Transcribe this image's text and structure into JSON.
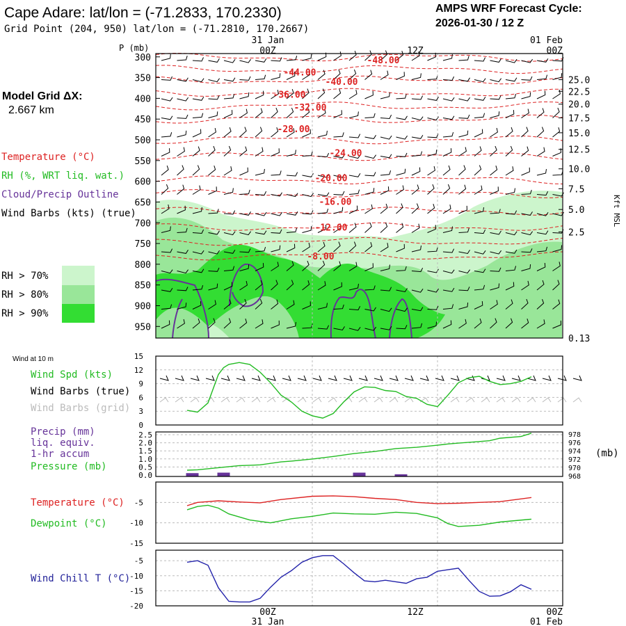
{
  "header": {
    "title": "Cape Adare:  lat/lon = (-71.2833, 170.2330)",
    "subtitle": "Grid Point (204, 950) lat/lon = (-71.2810, 170.2667)",
    "cycle_line1": "AMPS WRF Forecast Cycle:",
    "cycle_line2": "2026-01-30 / 12  Z"
  },
  "legend": {
    "model_grid_line1": "Model Grid ΔX:",
    "model_grid_line2": "2.667 km",
    "temperature": "Temperature (°C)",
    "rh": "RH (%, WRT liq. wat.)",
    "cloud": "Cloud/Precip Outline",
    "wind": "Wind Barbs (kts) (true)",
    "rh70": "RH > 70%",
    "rh80": "RH > 80%",
    "rh90": "RH > 90%",
    "colors": {
      "temperature": "#dd2222",
      "rh": "#22bb22",
      "cloud": "#663399",
      "rh70": "#ccf5cc",
      "rh80": "#99e699",
      "rh90": "#33dd33",
      "grid": "#bbbbbb"
    }
  },
  "time_axis": {
    "top_dates": [
      "31 Jan",
      "01 Feb"
    ],
    "top_times": [
      "00Z",
      "12Z",
      "00Z"
    ],
    "bottom_times": [
      "00Z",
      "12Z",
      "00Z"
    ],
    "bottom_dates": [
      "31 Jan",
      "01 Feb"
    ],
    "hours_range": [
      0,
      33
    ],
    "tick_hours": [
      12,
      24,
      36
    ]
  },
  "chart_data": [
    {
      "type": "line",
      "name": "vertical-cross-section",
      "ylabel": "P (mb)",
      "right_label": "Kft MSL",
      "y_ticks": [
        300,
        350,
        400,
        450,
        500,
        550,
        600,
        650,
        700,
        750,
        800,
        850,
        900,
        950
      ],
      "ylim": [
        292,
        978
      ],
      "right_ticks": [
        {
          "label": "25.0",
          "p": 355
        },
        {
          "label": "22.5",
          "p": 383
        },
        {
          "label": "20.0",
          "p": 414
        },
        {
          "label": "17.5",
          "p": 447
        },
        {
          "label": "15.0",
          "p": 483
        },
        {
          "label": "12.5",
          "p": 523
        },
        {
          "label": "10.0",
          "p": 570
        },
        {
          "label": "7.5",
          "p": 618
        },
        {
          "label": "5.0",
          "p": 668
        },
        {
          "label": "2.5",
          "p": 722
        },
        {
          "label": "0.13",
          "p": 978
        }
      ],
      "temperature_labels": [
        {
          "label": "-48.00",
          "hour": 18.8,
          "p": 309
        },
        {
          "label": "-44.00",
          "hour": 10.8,
          "p": 338
        },
        {
          "label": "-40.00",
          "hour": 14.8,
          "p": 361
        },
        {
          "label": "-36.00",
          "hour": 9.8,
          "p": 392
        },
        {
          "label": "-32.00",
          "hour": 11.8,
          "p": 423
        },
        {
          "label": "-28.00",
          "hour": 10.2,
          "p": 475
        },
        {
          "label": "-24.00",
          "hour": 15.2,
          "p": 533
        },
        {
          "label": "-20.00",
          "hour": 13.8,
          "p": 593
        },
        {
          "label": "-16.00",
          "hour": 14.2,
          "p": 650
        },
        {
          "label": "-12.00",
          "hour": 13.8,
          "p": 712
        },
        {
          "label": "-8.00",
          "hour": 12.8,
          "p": 782
        }
      ]
    },
    {
      "type": "line",
      "name": "wind-speed",
      "title": "Wind at 10 m",
      "labels": [
        "Wind Spd (kts)",
        "Wind Barbs (true)",
        "Wind Barbs (grid)"
      ],
      "y_ticks": [
        0,
        3,
        6,
        9,
        12,
        15
      ],
      "ylim": [
        0,
        15
      ],
      "x": [
        0,
        1,
        2,
        3,
        3.5,
        4,
        5,
        6,
        7,
        8,
        9,
        10,
        11,
        12,
        13,
        14,
        15,
        16,
        17,
        18,
        19,
        20,
        21,
        22,
        23,
        24,
        25,
        26,
        27,
        28,
        29,
        30,
        31,
        32,
        33
      ],
      "values": [
        3.2,
        2.8,
        4.8,
        11,
        12.5,
        13.2,
        13.6,
        13.2,
        11.5,
        9.2,
        6.5,
        5.0,
        3.0,
        2.0,
        1.5,
        2.5,
        5.0,
        7.2,
        8.3,
        8.2,
        7.5,
        7.3,
        6.2,
        5.8,
        4.5,
        4.0,
        6.5,
        9.2,
        10.3,
        10.6,
        9.5,
        8.8,
        9.0,
        9.5,
        10.5
      ]
    },
    {
      "type": "line",
      "name": "precip-pressure",
      "labels": [
        "Precip (mm)",
        "liq. equiv.",
        "1-hr accum",
        "Pressure (mb)"
      ],
      "pressure_unit": "(mb)",
      "y_ticks": [
        "0.0",
        "0.5",
        "1.0",
        "1.5",
        "2.0",
        "2.5"
      ],
      "ylim": [
        0,
        2.5
      ],
      "right_ticks": [
        968,
        970,
        972,
        974,
        976,
        978
      ],
      "right_lim": [
        967.8,
        978.5
      ],
      "x": [
        0,
        1,
        3,
        5,
        6,
        7,
        9,
        10,
        12,
        14,
        16,
        18,
        20,
        22,
        24,
        25,
        26,
        28,
        29,
        30,
        32,
        33
      ],
      "pressure": [
        969.3,
        969.4,
        969.9,
        970.4,
        970.5,
        970.6,
        971.3,
        971.5,
        972.0,
        972.6,
        973.3,
        973.8,
        974.5,
        974.8,
        975.3,
        975.6,
        975.8,
        976.2,
        976.4,
        977.0,
        977.4,
        978.2
      ],
      "precip": [
        {
          "hour": 0.5,
          "value": 0.12
        },
        {
          "hour": 3.5,
          "value": 0.15
        },
        {
          "hour": 16.5,
          "value": 0.15
        },
        {
          "hour": 20.5,
          "value": 0.05
        }
      ]
    },
    {
      "type": "line",
      "name": "temperature-dewpoint",
      "labels": [
        "Temperature (°C)",
        "Dewpoint (°C)"
      ],
      "y_ticks": [
        -15,
        -10,
        -5
      ],
      "ylim": [
        -15,
        0
      ],
      "x": [
        0,
        1,
        2,
        3,
        5,
        6,
        7,
        9,
        12,
        14,
        16,
        18,
        20,
        22,
        24,
        26,
        28,
        30,
        33
      ],
      "temperature": [
        -5.8,
        -5.0,
        -4.8,
        -4.6,
        -4.9,
        -5.0,
        -5.1,
        -4.3,
        -3.5,
        -3.4,
        -3.6,
        -4.0,
        -4.3,
        -5.0,
        -5.3,
        -5.2,
        -5.0,
        -4.8,
        -3.8
      ],
      "dewpoint_x": [
        0,
        1,
        2,
        3,
        4,
        6,
        8,
        10,
        12,
        14,
        16,
        18,
        20,
        22,
        24,
        25,
        26,
        28,
        30,
        33
      ],
      "dewpoint": [
        -6.8,
        -6.0,
        -5.7,
        -6.4,
        -7.8,
        -9.3,
        -10.0,
        -9.0,
        -8.4,
        -7.6,
        -7.8,
        -7.9,
        -7.4,
        -7.7,
        -8.8,
        -10.2,
        -10.9,
        -10.6,
        -9.8,
        -9.1
      ]
    },
    {
      "type": "line",
      "name": "wind-chill",
      "labels": [
        "Wind Chill T (°C)"
      ],
      "y_ticks": [
        -20,
        -15,
        -10,
        -5
      ],
      "ylim": [
        -20,
        -1.5
      ],
      "x": [
        0,
        1,
        2,
        3,
        4,
        5,
        6,
        7,
        8,
        9,
        10,
        11,
        12,
        13,
        14,
        15,
        16,
        17,
        18,
        19,
        20,
        21,
        22,
        23,
        24,
        25,
        26,
        27,
        28,
        29,
        30,
        31,
        32,
        33
      ],
      "values": [
        -5.5,
        -5.0,
        -6.5,
        -14.0,
        -18.5,
        -18.7,
        -18.7,
        -17.5,
        -13.8,
        -10.5,
        -8.3,
        -5.5,
        -4.0,
        -3.3,
        -3.3,
        -6.0,
        -9.0,
        -11.7,
        -12.0,
        -11.5,
        -12.0,
        -12.5,
        -11.0,
        -10.5,
        -8.5,
        -8.0,
        -7.5,
        -11.5,
        -15.2,
        -16.8,
        -16.7,
        -15.3,
        -13.0,
        -14.5
      ]
    }
  ]
}
